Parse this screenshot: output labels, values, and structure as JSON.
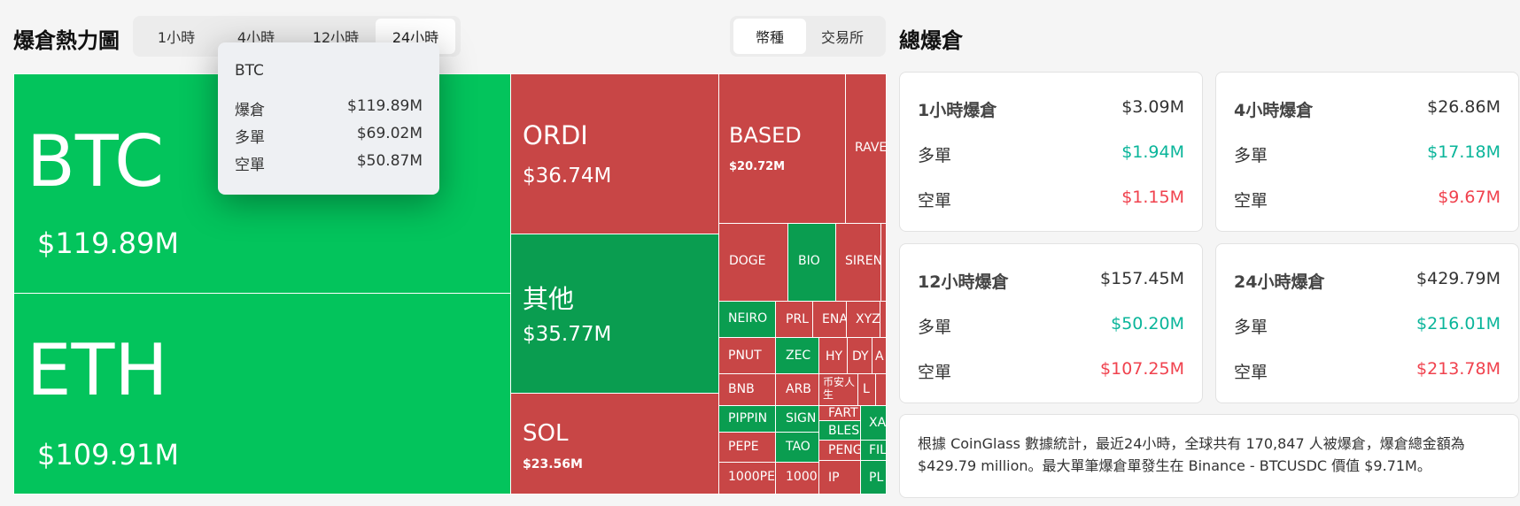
{
  "header": {
    "title": "爆倉熱力圖",
    "time_tabs": [
      "1小時",
      "4小時",
      "12小時",
      "24小時"
    ],
    "active_time_tab": "24小時",
    "view_tabs": [
      "幣種",
      "交易所"
    ],
    "active_view_tab": "幣種",
    "panel_title": "總爆倉"
  },
  "tooltip": {
    "title": "BTC",
    "rows": [
      {
        "label": "爆倉",
        "value": "$119.89M"
      },
      {
        "label": "多單",
        "value": "$69.02M"
      },
      {
        "label": "空單",
        "value": "$50.87M"
      }
    ]
  },
  "treemap": {
    "btc": {
      "symbol": "BTC",
      "value": "$119.89M"
    },
    "eth": {
      "symbol": "ETH",
      "value": "$109.91M"
    },
    "ordi": {
      "symbol": "ORDI",
      "value": "$36.74M"
    },
    "other": {
      "symbol": "其他",
      "value": "$35.77M"
    },
    "sol": {
      "symbol": "SOL",
      "value": "$23.56M"
    },
    "based": {
      "symbol": "BASED",
      "value": "$20.72M"
    },
    "small": {
      "rave": "RAVE",
      "doge": "DOGE",
      "bio": "BIO",
      "siren": "SIREN",
      "neiro": "NEIRO",
      "prl": "PRL",
      "ena": "ENA",
      "xyz": "XYZ",
      "pnut": "PNUT",
      "zec": "ZEC",
      "hy": "HY",
      "dy": "DY",
      "a": "A",
      "bnb": "BNB",
      "arb": "ARB",
      "zh": "币安人生",
      "l": "L",
      "pippin": "PIPPIN",
      "sign": "SIGN",
      "fart": "FART",
      "bless": "BLES",
      "xa": "XA",
      "pepe": "PEPE",
      "tao": "TAO",
      "peng": "PENG",
      "fil": "FIL",
      "pepe1000": "1000PE",
      "x1000": "1000",
      "ip": "IP",
      "pl": "PL"
    }
  },
  "cards": [
    {
      "title": "1小時爆倉",
      "total": "$3.09M",
      "long_label": "多單",
      "long": "$1.94M",
      "short_label": "空單",
      "short": "$1.15M"
    },
    {
      "title": "4小時爆倉",
      "total": "$26.86M",
      "long_label": "多單",
      "long": "$17.18M",
      "short_label": "空單",
      "short": "$9.67M"
    },
    {
      "title": "12小時爆倉",
      "total": "$157.45M",
      "long_label": "多單",
      "long": "$50.20M",
      "short_label": "空單",
      "short": "$107.25M"
    },
    {
      "title": "24小時爆倉",
      "total": "$429.79M",
      "long_label": "多單",
      "long": "$216.01M",
      "short_label": "空單",
      "short": "$213.78M"
    }
  ],
  "summary": "根據 CoinGlass 數據統計，最近24小時，全球共有 170,847 人被爆倉，爆倉總金額為 $429.79 million。最大單筆爆倉單發生在 Binance - BTCUSDC 價值 $9.71M。",
  "colors": {
    "long_green": "#0ab59a",
    "short_red": "#f0424e",
    "tile_green": "#03c45c",
    "tile_red": "#c84646"
  }
}
